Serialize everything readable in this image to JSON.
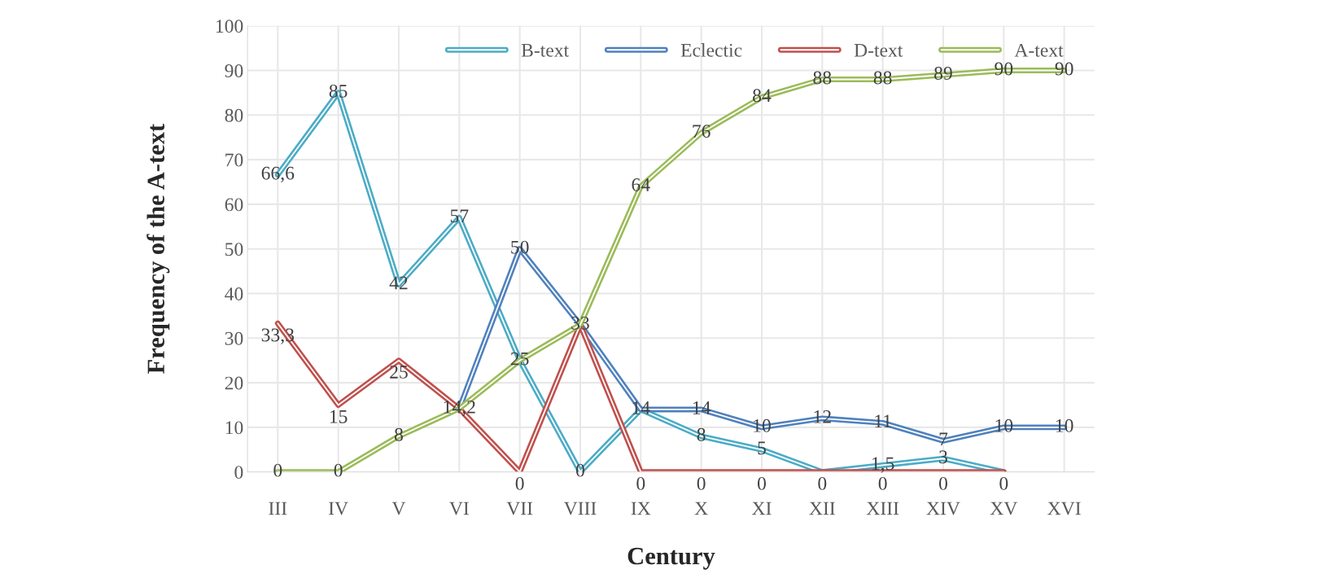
{
  "chart_data": {
    "type": "line",
    "xlabel": "Century",
    "ylabel": "Frequency of the A-text",
    "categories": [
      "III",
      "IV",
      "V",
      "VI",
      "VII",
      "VIII",
      "IX",
      "X",
      "XI",
      "XII",
      "XIII",
      "XIV",
      "XV",
      "XVI"
    ],
    "ylim": [
      0,
      100
    ],
    "yticks": [
      0,
      10,
      20,
      30,
      40,
      50,
      60,
      70,
      80,
      90,
      100
    ],
    "grid": true,
    "legend": "top",
    "marker": "none",
    "line_style": "solid",
    "series": [
      {
        "name": "B-text",
        "color": "#4bacc6",
        "values": [
          66.6,
          85,
          42,
          57,
          25,
          0,
          14,
          8,
          5,
          0,
          1.5,
          3,
          0,
          null
        ],
        "value_labels": [
          "66,6",
          "85",
          "42",
          "57",
          null,
          "0",
          null,
          "8",
          "5",
          null,
          "1,5",
          "3",
          null,
          null
        ]
      },
      {
        "name": "Eclectic",
        "color": "#4f81bd",
        "values": [
          null,
          null,
          null,
          14.2,
          50,
          33,
          14,
          14,
          10,
          12,
          11,
          7,
          10,
          10
        ],
        "value_labels": [
          null,
          null,
          null,
          null,
          "50",
          null,
          "14",
          "14",
          "10",
          "12",
          "11",
          "7",
          "10",
          "10"
        ]
      },
      {
        "name": "D-text",
        "color": "#c0504d",
        "values": [
          33.3,
          15,
          25,
          14.2,
          0,
          33,
          0,
          0,
          0,
          0,
          0,
          0,
          0,
          null
        ],
        "value_labels": [
          "33,3",
          "15",
          "25",
          null,
          "0",
          null,
          "0",
          "0",
          "0",
          "0",
          "0",
          "0",
          "0",
          null
        ]
      },
      {
        "name": "A-text",
        "color": "#9bbb59",
        "values": [
          0,
          0,
          8,
          14.2,
          25,
          33,
          64,
          76,
          84,
          88,
          88,
          89,
          90,
          90
        ],
        "value_labels": [
          "0",
          "0",
          "8",
          "14,2",
          "25",
          "33",
          "64",
          "76",
          "84",
          "88",
          "88",
          "89",
          "90",
          "90"
        ]
      }
    ]
  }
}
